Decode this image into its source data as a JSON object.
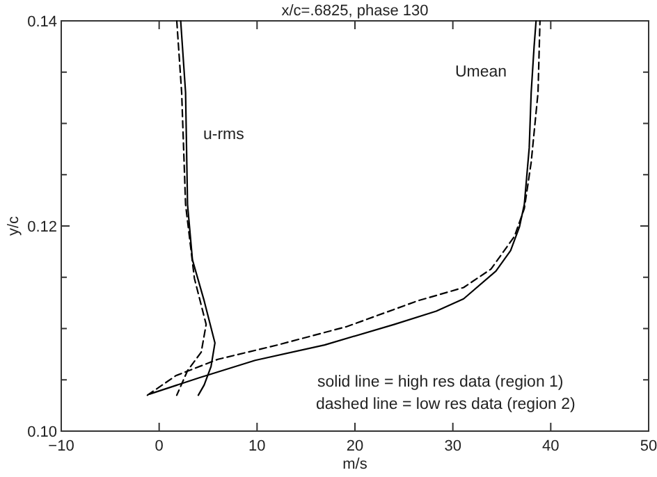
{
  "chart_data": {
    "type": "line",
    "title": "x/c=.6825, phase 130",
    "xlabel": "m/s",
    "ylabel": "y/c",
    "xlim": [
      -10,
      50
    ],
    "xticks": [
      -10,
      0,
      10,
      20,
      30,
      40,
      50
    ],
    "ylim": [
      0.1,
      0.14
    ],
    "yticks": [
      {
        "value": 0.1,
        "label": "0.10"
      },
      {
        "value": 0.105,
        "label": null
      },
      {
        "value": 0.11,
        "label": null
      },
      {
        "value": 0.115,
        "label": null
      },
      {
        "value": 0.12,
        "label": "0.12"
      },
      {
        "value": 0.125,
        "label": null
      },
      {
        "value": 0.13,
        "label": null
      },
      {
        "value": 0.135,
        "label": null
      },
      {
        "value": 0.14,
        "label": "0.14"
      }
    ],
    "grid": false,
    "marker": "none",
    "series": [
      {
        "color": "#000000",
        "line_style": "solid",
        "x": [
          -1.0,
          4.1,
          9.8,
          16.9,
          24.0,
          28.3,
          31.1,
          34.4,
          35.9,
          36.8,
          37.3,
          37.8,
          38.0,
          38.3,
          38.5
        ],
        "values": [
          0.1036,
          0.1052,
          0.1069,
          0.1084,
          0.1104,
          0.1117,
          0.1129,
          0.1156,
          0.1176,
          0.1199,
          0.1221,
          0.1276,
          0.133,
          0.1375,
          0.14
        ]
      },
      {
        "color": "#000000",
        "line_style": "dashed",
        "x": [
          -1.2,
          1.7,
          6.0,
          12.1,
          19.2,
          26.4,
          31.1,
          33.9,
          36.3,
          37.3,
          38.0,
          38.7,
          38.9
        ],
        "values": [
          0.1035,
          0.1054,
          0.107,
          0.1084,
          0.1102,
          0.1127,
          0.114,
          0.1158,
          0.119,
          0.1217,
          0.1262,
          0.133,
          0.14
        ]
      },
      {
        "color": "#000000",
        "line_style": "solid",
        "x": [
          2.2,
          2.7,
          2.9,
          3.4,
          4.6,
          5.7,
          5.3,
          4.6,
          4.0
        ],
        "values": [
          0.14,
          0.133,
          0.1221,
          0.1167,
          0.1127,
          0.1086,
          0.1063,
          0.1045,
          0.1035
        ]
      },
      {
        "color": "#000000",
        "line_style": "dashed",
        "x": [
          1.8,
          2.3,
          2.7,
          3.6,
          4.8,
          4.3,
          2.9,
          1.8
        ],
        "values": [
          0.14,
          0.133,
          0.1221,
          0.1149,
          0.1104,
          0.1077,
          0.1059,
          0.1035
        ]
      }
    ],
    "annotations": [
      "Umean",
      "u-rms",
      "solid line = high res data (region 1)",
      "dashed line = low res data (region 2)"
    ]
  }
}
